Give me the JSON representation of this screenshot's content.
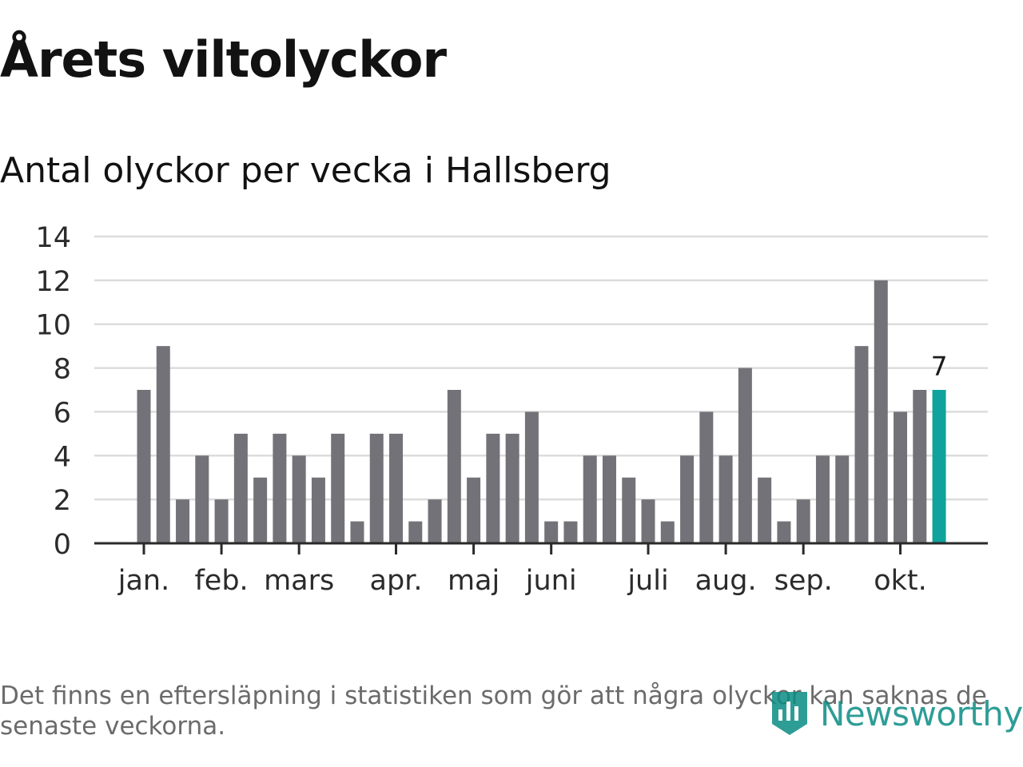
{
  "header": {
    "title": "Årets viltolyckor",
    "subtitle": "Antal olyckor per vecka i Hallsberg"
  },
  "footer": {
    "note": "Det finns en eftersläpning i statistiken som gör att några olyckor kan saknas de senaste veckorna.",
    "logo_text": "Newsworthy"
  },
  "colors": {
    "bar": "#737278",
    "highlight": "#0fa39b",
    "grid": "#dcdcdc",
    "axis": "#2a2a2a",
    "text": "#2b2b2b"
  },
  "chart_data": {
    "type": "bar",
    "title": "Antal olyckor per vecka i Hallsberg",
    "xlabel": "",
    "ylabel": "",
    "ylim": [
      0,
      14
    ],
    "yticks": [
      0,
      2,
      4,
      6,
      8,
      10,
      12,
      14
    ],
    "grid": true,
    "weeks": [
      2,
      3,
      4,
      5,
      6,
      7,
      8,
      9,
      10,
      11,
      12,
      13,
      14,
      15,
      16,
      17,
      18,
      19,
      20,
      21,
      22,
      23,
      24,
      25,
      26,
      27,
      28,
      29,
      30,
      31,
      32,
      33,
      34,
      35,
      36,
      37,
      38,
      39,
      40,
      41,
      42,
      43
    ],
    "values": [
      7,
      9,
      2,
      4,
      2,
      5,
      3,
      5,
      4,
      3,
      5,
      1,
      5,
      5,
      1,
      2,
      7,
      3,
      5,
      5,
      6,
      1,
      1,
      4,
      4,
      3,
      2,
      1,
      4,
      6,
      4,
      8,
      3,
      1,
      2,
      4,
      4,
      9,
      12,
      6,
      7,
      7
    ],
    "highlight_last": true,
    "last_value_label": "7",
    "month_ticks": [
      {
        "label": "jan.",
        "week": 2
      },
      {
        "label": "feb.",
        "week": 6
      },
      {
        "label": "mars",
        "week": 10
      },
      {
        "label": "apr.",
        "week": 15
      },
      {
        "label": "maj",
        "week": 19
      },
      {
        "label": "juni",
        "week": 23
      },
      {
        "label": "juli",
        "week": 28
      },
      {
        "label": "aug.",
        "week": 32
      },
      {
        "label": "sep.",
        "week": 36
      },
      {
        "label": "okt.",
        "week": 41
      }
    ]
  }
}
